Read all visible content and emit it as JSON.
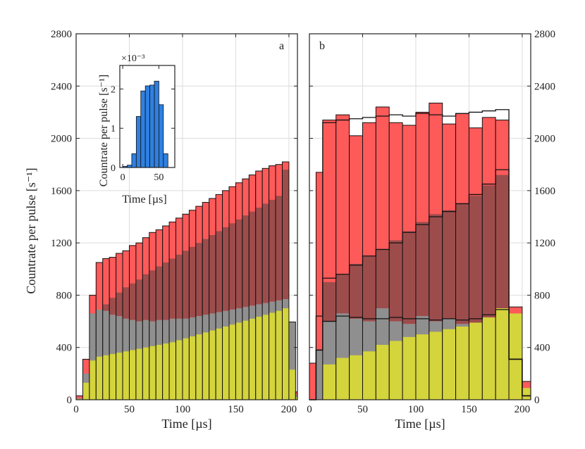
{
  "chart_data": [
    {
      "id": "panel-a",
      "type": "bar",
      "panel_label": "a",
      "xlabel": "Time [µs]",
      "ylabel": "Countrate per pulse [s⁻¹]",
      "xlim": [
        0,
        208
      ],
      "ylim": [
        0,
        2800
      ],
      "xticks": [
        0,
        50,
        100,
        150,
        200
      ],
      "yticks": [
        0,
        400,
        800,
        1200,
        1600,
        2000,
        2400,
        2800
      ],
      "bin_width": 6.25,
      "grid": true,
      "colors": {
        "red": "#ff5a5a",
        "gray": "#8f8f8f",
        "dark": "#8c4a4a",
        "yellow": "#d4d43c"
      },
      "bin_starts": [
        0,
        6.25,
        12.5,
        18.75,
        25,
        31.25,
        37.5,
        43.75,
        50,
        56.25,
        62.5,
        68.75,
        75,
        81.25,
        87.5,
        93.75,
        100,
        106.25,
        112.5,
        118.75,
        125,
        131.25,
        137.5,
        143.75,
        150,
        156.25,
        162.5,
        168.75,
        175,
        181.25,
        187.5,
        193.75,
        200,
        206.25
      ],
      "total": [
        30,
        310,
        800,
        1050,
        1080,
        1090,
        1120,
        1140,
        1180,
        1200,
        1240,
        1280,
        1300,
        1330,
        1360,
        1390,
        1420,
        1450,
        1480,
        1510,
        1540,
        1570,
        1600,
        1630,
        1660,
        1690,
        1720,
        1750,
        1770,
        1790,
        1800,
        1820,
        595,
        60
      ],
      "gray": [
        10,
        200,
        660,
        690,
        680,
        650,
        640,
        620,
        610,
        600,
        610,
        600,
        610,
        610,
        620,
        620,
        620,
        630,
        640,
        650,
        660,
        670,
        680,
        690,
        700,
        710,
        720,
        730,
        740,
        750,
        760,
        770,
        595,
        40
      ],
      "dark": [
        10,
        200,
        660,
        690,
        730,
        780,
        820,
        860,
        890,
        920,
        960,
        990,
        1020,
        1050,
        1080,
        1110,
        1140,
        1170,
        1200,
        1230,
        1260,
        1290,
        1320,
        1350,
        1380,
        1410,
        1440,
        1470,
        1500,
        1530,
        1560,
        1760,
        560,
        40
      ],
      "yellow": [
        5,
        130,
        300,
        330,
        340,
        350,
        360,
        370,
        380,
        390,
        400,
        410,
        420,
        430,
        440,
        455,
        470,
        485,
        500,
        515,
        530,
        545,
        560,
        575,
        590,
        605,
        620,
        635,
        650,
        665,
        680,
        700,
        230,
        20
      ]
    },
    {
      "id": "panel-b",
      "type": "bar",
      "panel_label": "b",
      "xlabel": "Time [µs]",
      "ylabel": "",
      "xlim": [
        0,
        208
      ],
      "ylim": [
        0,
        2800
      ],
      "xticks": [
        0,
        50,
        100,
        150,
        200
      ],
      "yticks": [
        0,
        400,
        800,
        1200,
        1600,
        2000,
        2400,
        2800
      ],
      "bin_width": 12.5,
      "grid": true,
      "colors": {
        "red": "#ff5a5a",
        "gray": "#8f8f8f",
        "dark": "#8c4a4a",
        "yellow": "#d4d43c",
        "orange": "#e8a040"
      },
      "bin_starts": [
        0,
        6.25,
        12.5,
        25,
        37.5,
        50,
        62.5,
        75,
        87.5,
        100,
        112.5,
        125,
        137.5,
        150,
        162.5,
        175,
        187.5,
        200
      ],
      "bin_widths": [
        6.25,
        6.25,
        12.5,
        12.5,
        12.5,
        12.5,
        12.5,
        12.5,
        12.5,
        12.5,
        12.5,
        12.5,
        12.5,
        12.5,
        12.5,
        12.5,
        12.5,
        8
      ],
      "red": [
        280,
        1740,
        2140,
        2180,
        2020,
        2120,
        2240,
        2120,
        2100,
        2200,
        2270,
        2110,
        2190,
        2080,
        2160,
        2140,
        710,
        140
      ],
      "dark": [
        0,
        380,
        900,
        960,
        1040,
        1100,
        1150,
        1220,
        1290,
        1360,
        1420,
        1450,
        1500,
        1560,
        1640,
        1720,
        0,
        0
      ],
      "gray": [
        0,
        380,
        600,
        660,
        620,
        600,
        700,
        600,
        580,
        640,
        600,
        620,
        580,
        560,
        600,
        600,
        0,
        0
      ],
      "yellow": [
        0,
        0,
        270,
        320,
        340,
        370,
        420,
        450,
        480,
        500,
        520,
        540,
        560,
        590,
        630,
        700,
        660,
        90
      ],
      "outline_upper": [
        0,
        640,
        2120,
        2140,
        2150,
        2160,
        2170,
        2180,
        2170,
        2190,
        2180,
        2170,
        2190,
        2200,
        2210,
        2220,
        310,
        30
      ],
      "outline_mid": [
        0,
        380,
        930,
        960,
        1030,
        1100,
        1150,
        1200,
        1280,
        1340,
        1400,
        1440,
        1500,
        1570,
        1650,
        1760,
        310,
        30
      ],
      "outline_lower": [
        0,
        380,
        600,
        640,
        630,
        620,
        620,
        630,
        620,
        620,
        610,
        620,
        610,
        620,
        650,
        690,
        310,
        30
      ]
    },
    {
      "id": "inset",
      "type": "bar",
      "xlabel": "Time [µs]",
      "ylabel": "Countrate per pulse [s⁻¹]",
      "y_multiplier": "×10⁻³",
      "xlim": [
        -4,
        72
      ],
      "ylim": [
        0,
        2.6
      ],
      "xticks": [
        0,
        50
      ],
      "yticks": [
        0,
        1,
        2
      ],
      "bin_width": 6.25,
      "color": "#2f80e0",
      "bin_starts": [
        0,
        6.25,
        12.5,
        18.75,
        25,
        31.25,
        37.5,
        43.75,
        50,
        56.25,
        62.5
      ],
      "values": [
        0.03,
        0.06,
        0.35,
        1.3,
        1.95,
        2.08,
        2.1,
        2.2,
        1.6,
        0.35,
        0.0
      ]
    }
  ]
}
